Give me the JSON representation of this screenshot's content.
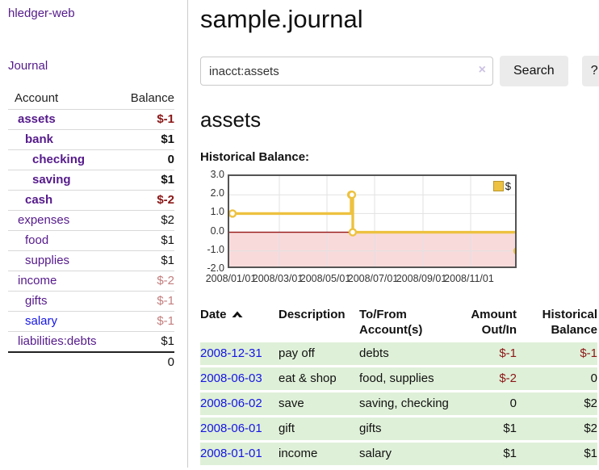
{
  "colors": {
    "link_purple": "#551a8b",
    "link_blue": "#1515e6",
    "negative_dark": "#8b1717",
    "negative_soft": "#c47e7e",
    "series_gold": "#edc240",
    "row_green": "#dff0d8",
    "negative_region_pink": "#f9dada",
    "zero_line_red": "#941414"
  },
  "sidebar": {
    "app_title": "hledger-web",
    "journal_label": "Journal",
    "accounts": {
      "header_account": "Account",
      "header_balance": "Balance",
      "rows": [
        {
          "name": "assets",
          "balance": "$-1"
        },
        {
          "name": "bank",
          "balance": "$1"
        },
        {
          "name": "checking",
          "balance": "0"
        },
        {
          "name": "saving",
          "balance": "$1"
        },
        {
          "name": "cash",
          "balance": "$-2"
        },
        {
          "name": "expenses",
          "balance": "$2"
        },
        {
          "name": "food",
          "balance": "$1"
        },
        {
          "name": "supplies",
          "balance": "$1"
        },
        {
          "name": "income",
          "balance": "$-2"
        },
        {
          "name": "gifts",
          "balance": "$-1"
        },
        {
          "name": "salary",
          "balance": "$-1"
        },
        {
          "name": "liabilities:debts",
          "balance": "$1"
        }
      ],
      "total": "0"
    }
  },
  "main": {
    "title": "sample.journal",
    "search": {
      "value": "inacct:assets",
      "clear_icon": "×",
      "button_label": "Search",
      "help_label": "?"
    },
    "account_heading": "assets",
    "chart_heading": "Historical Balance:"
  },
  "chart_data": {
    "type": "line",
    "title": "Historical Balance:",
    "step": true,
    "legend": {
      "label": "$",
      "position": "top-right"
    },
    "series": [
      {
        "name": "$",
        "color": "#edc240",
        "points": [
          [
            "2008-01-01",
            1
          ],
          [
            "2008-06-01",
            2
          ],
          [
            "2008-06-02",
            2
          ],
          [
            "2008-06-03",
            0
          ],
          [
            "2008-12-31",
            -1
          ]
        ]
      }
    ],
    "x_range": [
      "2008-01-01",
      "2009-01-01"
    ],
    "ylim": [
      -2,
      3
    ],
    "yticks": [
      "3.0",
      "2.0",
      "1.0",
      "0.0",
      "-1.0",
      "-2.0"
    ],
    "xticks": [
      {
        "label": "2008/01/01",
        "date": "2008-01-01"
      },
      {
        "label": "2008/03/01",
        "date": "2008-03-01"
      },
      {
        "label": "2008/05/01",
        "date": "2008-05-01"
      },
      {
        "label": "2008/07/01",
        "date": "2008-07-01"
      },
      {
        "label": "2008/09/01",
        "date": "2008-09-01"
      },
      {
        "label": "2008/11/01",
        "date": "2008-11-01"
      }
    ],
    "grid": true
  },
  "register": {
    "headers": {
      "date": "Date",
      "description": "Description",
      "tofrom_line1": "To/From",
      "tofrom_line2": "Account(s)",
      "amount_line1": "Amount",
      "amount_line2": "Out/In",
      "balance_line1": "Historical",
      "balance_line2": "Balance"
    },
    "rows": [
      {
        "date": "2008-12-31",
        "description": "pay off",
        "accounts": "debts",
        "amount": "$-1",
        "balance": "$-1"
      },
      {
        "date": "2008-06-03",
        "description": "eat & shop",
        "accounts": "food, supplies",
        "amount": "$-2",
        "balance": "0"
      },
      {
        "date": "2008-06-02",
        "description": "save",
        "accounts": "saving, checking",
        "amount": "0",
        "balance": "$2"
      },
      {
        "date": "2008-06-01",
        "description": "gift",
        "accounts": "gifts",
        "amount": "$1",
        "balance": "$2"
      },
      {
        "date": "2008-01-01",
        "description": "income",
        "accounts": "salary",
        "amount": "$1",
        "balance": "$1"
      }
    ]
  }
}
